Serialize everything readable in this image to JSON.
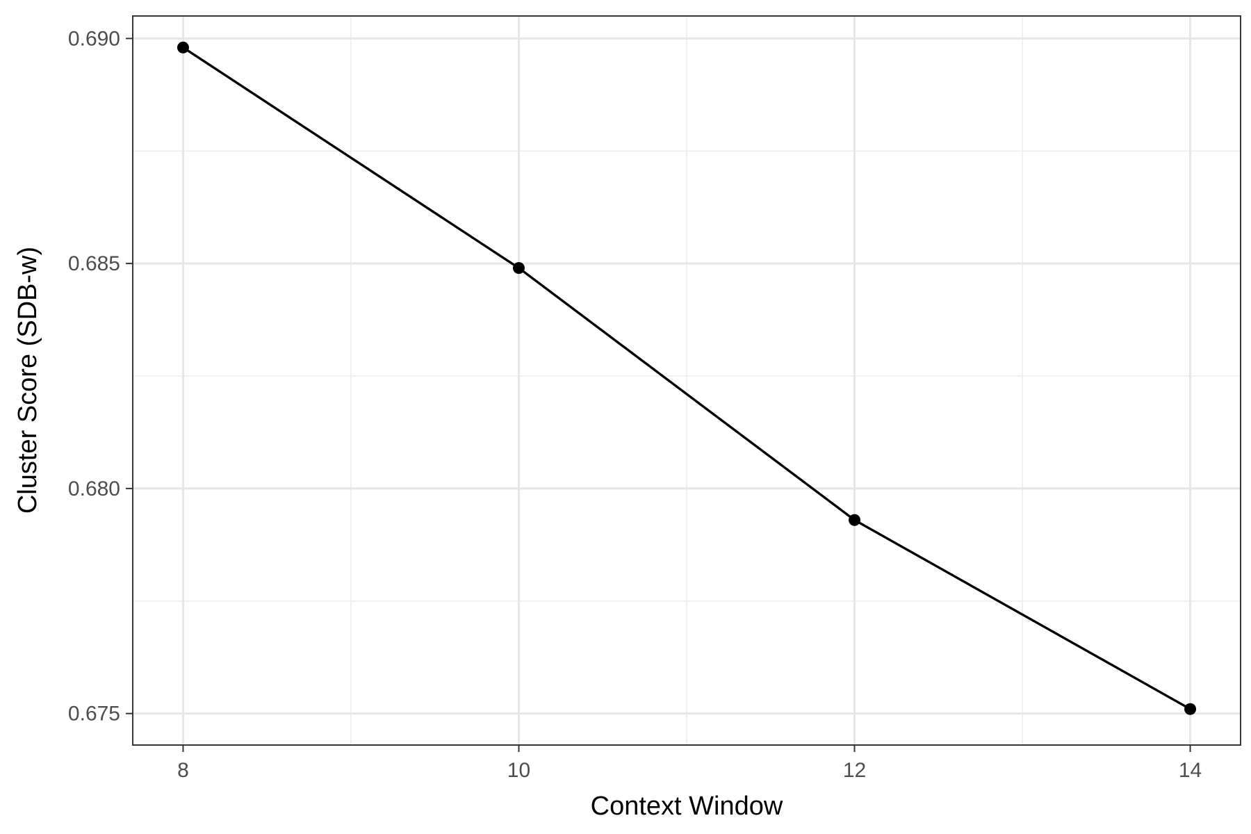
{
  "chart_data": {
    "type": "line",
    "title": "",
    "xlabel": "Context Window",
    "ylabel": "Cluster Score (SDB-w)",
    "x_ticks": [
      "8",
      "10",
      "12",
      "14"
    ],
    "y_ticks": [
      "0.675",
      "0.680",
      "0.685",
      "0.690"
    ],
    "xlim": [
      7.7,
      14.3
    ],
    "ylim": [
      0.6743,
      0.6905
    ],
    "grid": true,
    "legend": "none",
    "series": [
      {
        "color": "#000000",
        "x": [
          8,
          10,
          12,
          14
        ],
        "y": [
          0.6898,
          0.6849,
          0.6793,
          0.6751
        ]
      }
    ]
  }
}
